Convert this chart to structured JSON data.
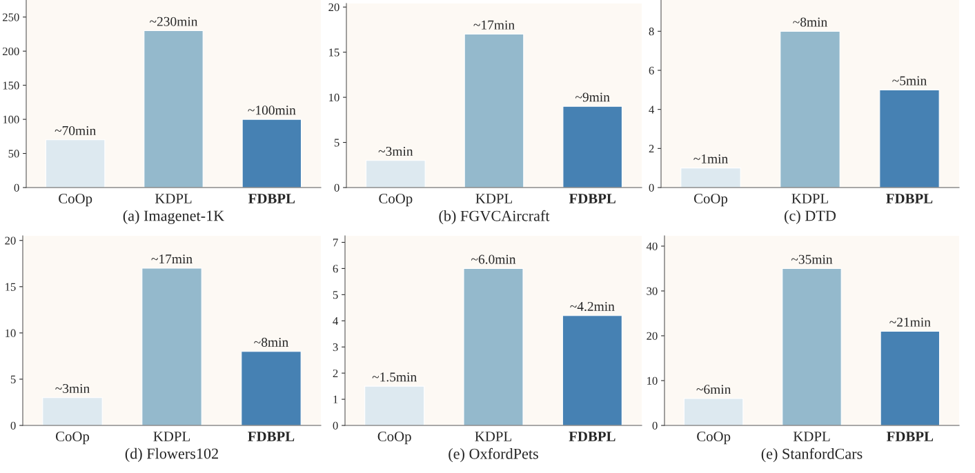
{
  "chart_data": [
    {
      "type": "bar",
      "xlabel": "(a) Imagenet-1K",
      "categories": [
        "CoOp",
        "KDPL",
        "FDBPL"
      ],
      "values": [
        70,
        230,
        100
      ],
      "value_labels": [
        "~70min",
        "~230min",
        "~100min"
      ],
      "colors": [
        "#dde9f0",
        "#94b9cc",
        "#4681b3"
      ],
      "ylim": [
        0,
        275
      ],
      "yticks": [
        0,
        50,
        100,
        150,
        200,
        250
      ],
      "grid": false,
      "legend": false
    },
    {
      "type": "bar",
      "xlabel": "(b) FGVCAircraft",
      "categories": [
        "CoOp",
        "KDPL",
        "FDBPL"
      ],
      "values": [
        3,
        17,
        9
      ],
      "value_labels": [
        "~3min",
        "~17min",
        "~9min"
      ],
      "colors": [
        "#dde9f0",
        "#94b9cc",
        "#4681b3"
      ],
      "ylim": [
        0,
        20.4
      ],
      "yticks": [
        0,
        5,
        10,
        15,
        20
      ],
      "grid": false,
      "legend": false
    },
    {
      "type": "bar",
      "xlabel": "(c) DTD",
      "categories": [
        "CoOp",
        "KDPL",
        "FDBPL"
      ],
      "values": [
        1,
        8,
        5
      ],
      "value_labels": [
        "~1min",
        "~8min",
        "~5min"
      ],
      "colors": [
        "#dde9f0",
        "#94b9cc",
        "#4681b3"
      ],
      "ylim": [
        0,
        9.6
      ],
      "yticks": [
        0,
        2,
        4,
        6,
        8
      ],
      "grid": false,
      "legend": false
    },
    {
      "type": "bar",
      "xlabel": "(d) Flowers102",
      "categories": [
        "CoOp",
        "KDPL",
        "FDBPL"
      ],
      "values": [
        3,
        17,
        8
      ],
      "value_labels": [
        "~3min",
        "~17min",
        "~8min"
      ],
      "colors": [
        "#dde9f0",
        "#94b9cc",
        "#4681b3"
      ],
      "ylim": [
        0,
        20.5
      ],
      "yticks": [
        0,
        5,
        10,
        15,
        20
      ],
      "grid": false,
      "legend": false
    },
    {
      "type": "bar",
      "xlabel": "(e) OxfordPets",
      "categories": [
        "CoOp",
        "KDPL",
        "FDBPL"
      ],
      "values": [
        1.5,
        6.0,
        4.2
      ],
      "value_labels": [
        "~1.5min",
        "~6.0min",
        "~4.2min"
      ],
      "colors": [
        "#dde9f0",
        "#94b9cc",
        "#4681b3"
      ],
      "ylim": [
        0,
        7.25
      ],
      "yticks": [
        0,
        1,
        2,
        3,
        4,
        5,
        6,
        7
      ],
      "grid": false,
      "legend": false
    },
    {
      "type": "bar",
      "xlabel": "(e) StanfordCars",
      "categories": [
        "CoOp",
        "KDPL",
        "FDBPL"
      ],
      "values": [
        6,
        35,
        21
      ],
      "value_labels": [
        "~6min",
        "~35min",
        "~21min"
      ],
      "colors": [
        "#dde9f0",
        "#94b9cc",
        "#4681b3"
      ],
      "ylim": [
        0,
        42.3
      ],
      "yticks": [
        0,
        10,
        20,
        30,
        40
      ],
      "grid": false,
      "legend": false
    }
  ]
}
